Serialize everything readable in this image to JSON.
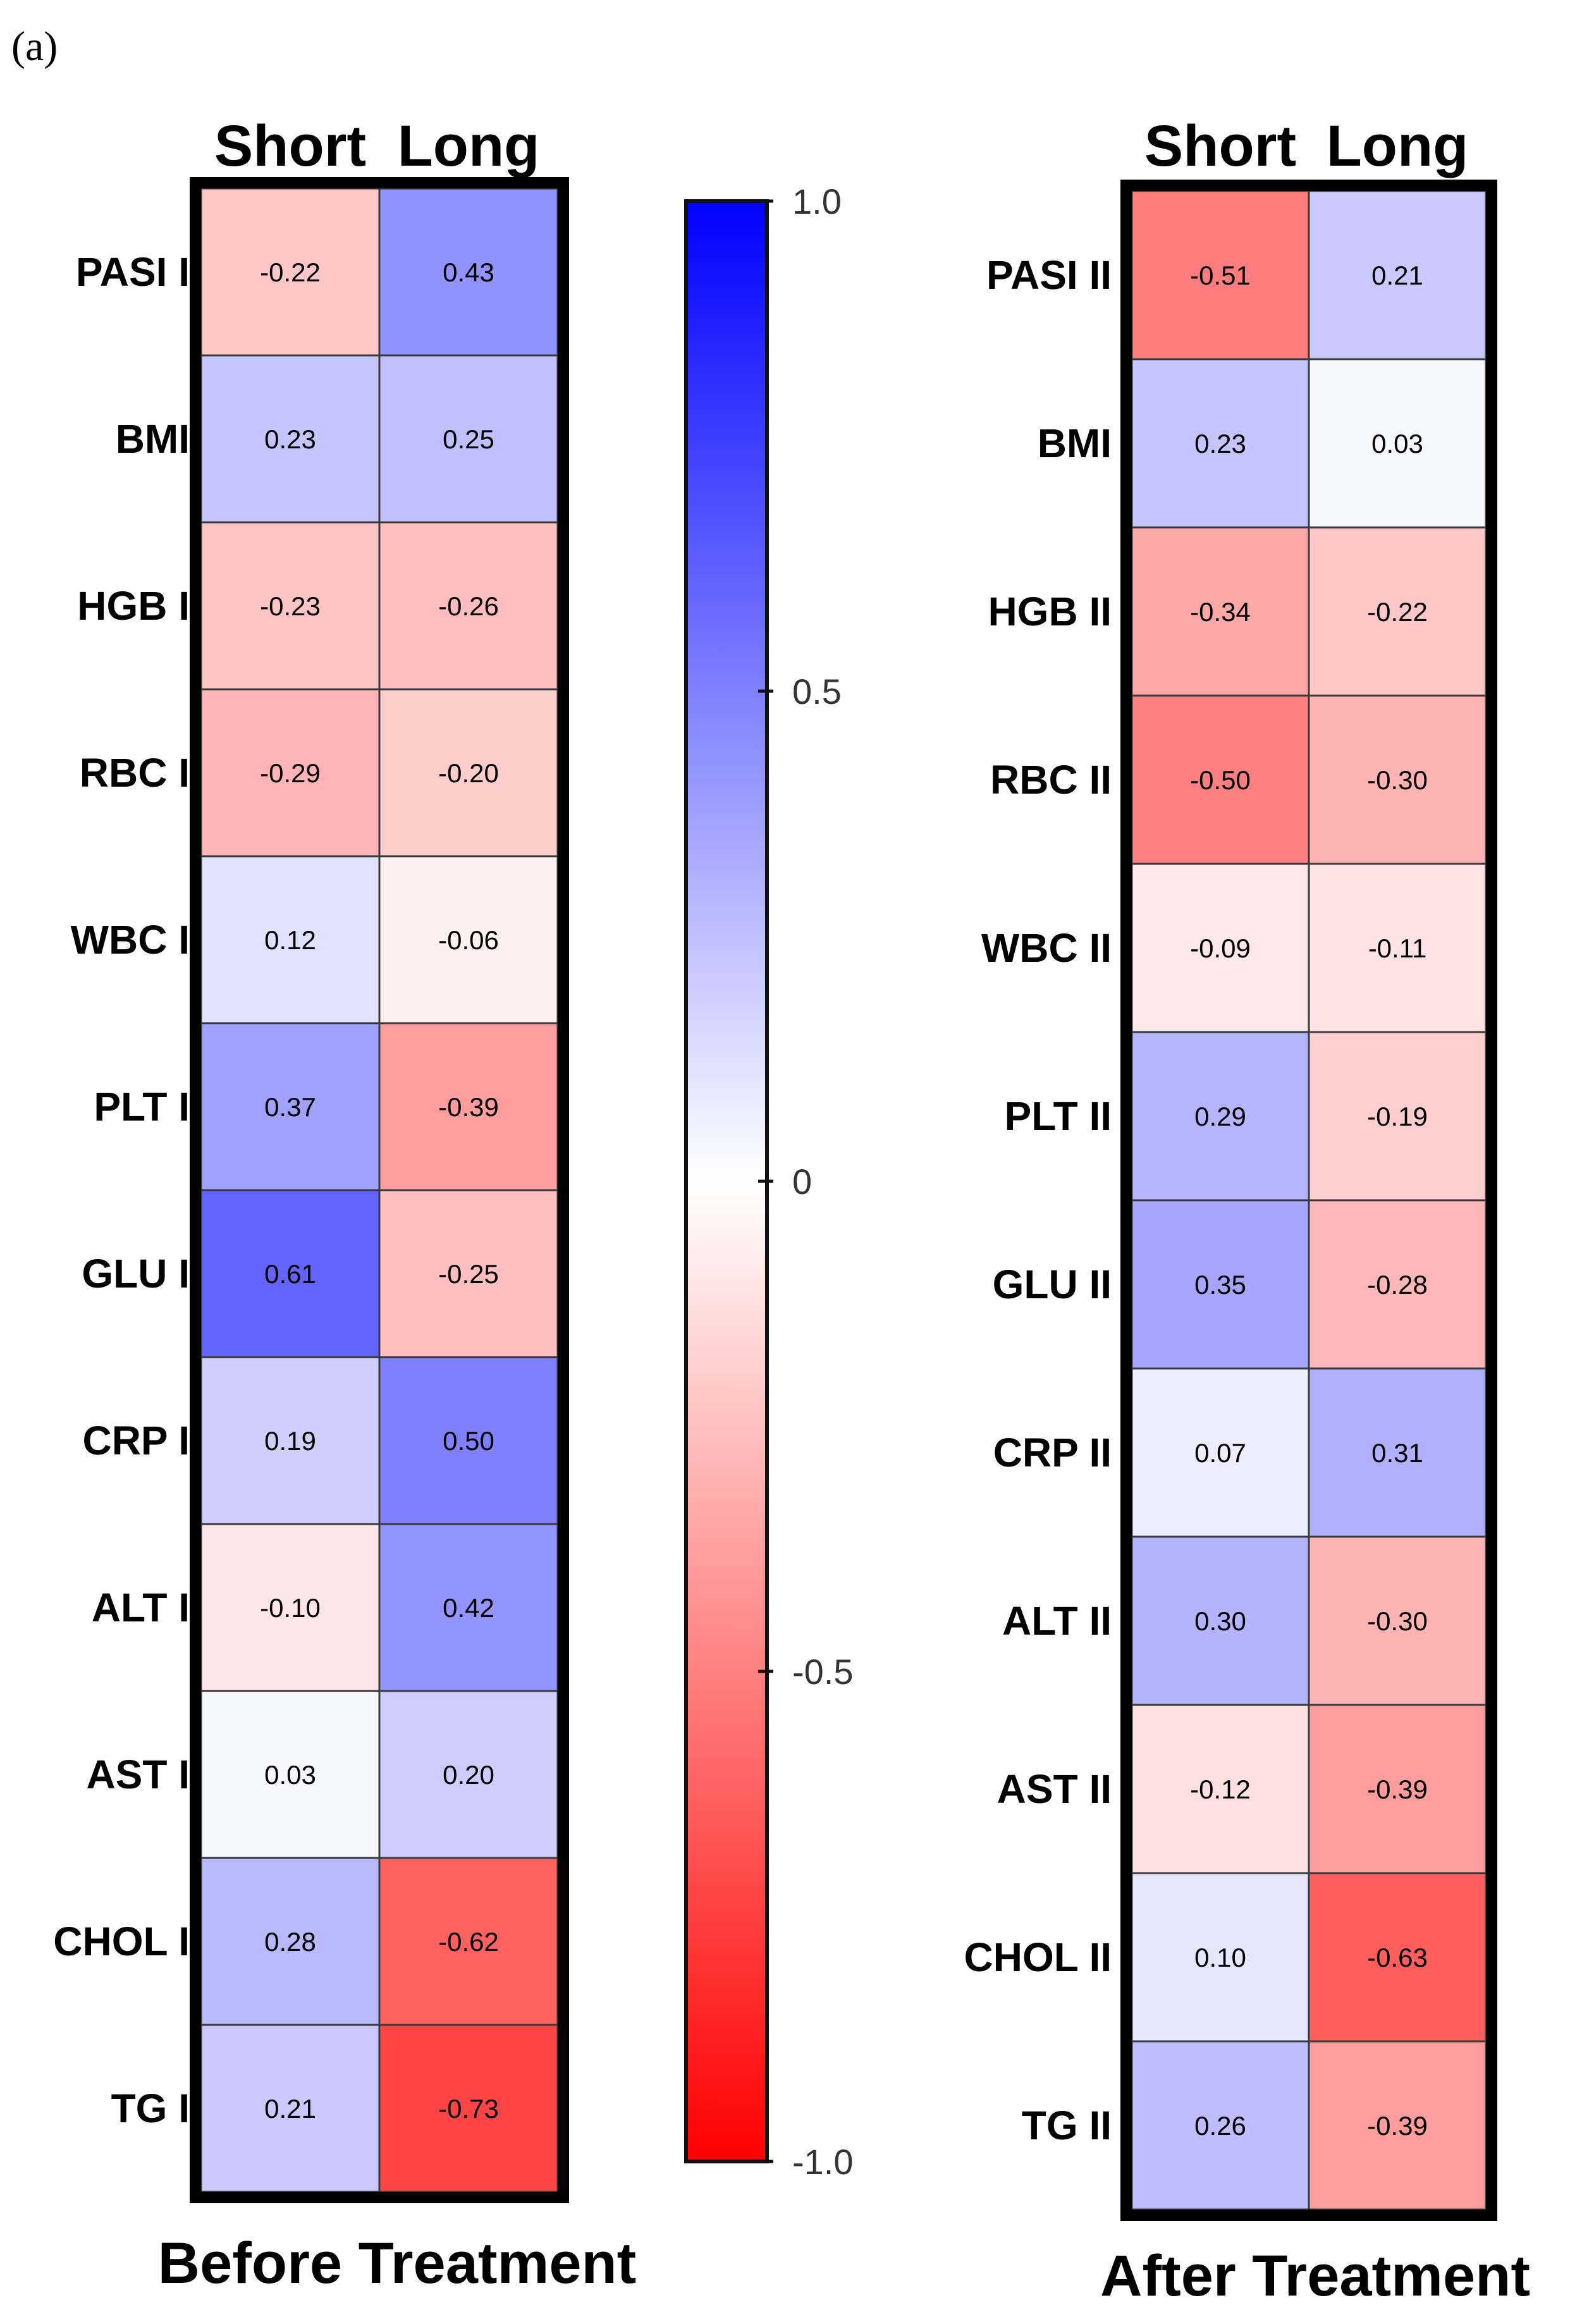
{
  "panel_label": "(a)",
  "colorbar": {
    "ticks": [
      {
        "value": 1.0,
        "label": "1.0"
      },
      {
        "value": 0.5,
        "label": "0.5"
      },
      {
        "value": 0,
        "label": "0"
      },
      {
        "value": -0.5,
        "label": "-0.5"
      },
      {
        "value": -1.0,
        "label": "-1.0"
      }
    ],
    "colors": {
      "max": "#0000ff",
      "mid": "#ffffff",
      "min": "#ff0000"
    }
  },
  "chart_data": [
    {
      "type": "heatmap",
      "title": "Before Treatment",
      "columns": [
        "Short",
        "Long"
      ],
      "rows": [
        "PASI I",
        "BMI",
        "HGB I",
        "RBC I",
        "WBC I",
        "PLT I",
        "GLU I",
        "CRP I",
        "ALT I",
        "AST I",
        "CHOL I",
        "TG I"
      ],
      "values": [
        [
          -0.22,
          0.43
        ],
        [
          0.23,
          0.25
        ],
        [
          -0.23,
          -0.26
        ],
        [
          -0.29,
          -0.2
        ],
        [
          0.12,
          -0.06
        ],
        [
          0.37,
          -0.39
        ],
        [
          0.61,
          -0.25
        ],
        [
          0.19,
          0.5
        ],
        [
          -0.1,
          0.42
        ],
        [
          0.03,
          0.2
        ],
        [
          0.28,
          -0.62
        ],
        [
          0.21,
          -0.73
        ]
      ],
      "value_labels": [
        [
          "-0.22",
          "0.43"
        ],
        [
          "0.23",
          "0.25"
        ],
        [
          "-0.23",
          "-0.26"
        ],
        [
          "-0.29",
          "-0.20"
        ],
        [
          "0.12",
          "-0.06"
        ],
        [
          "0.37",
          "-0.39"
        ],
        [
          "0.61",
          "-0.25"
        ],
        [
          "0.19",
          "0.50"
        ],
        [
          "-0.10",
          "0.42"
        ],
        [
          "0.03",
          "0.20"
        ],
        [
          "0.28",
          "-0.62"
        ],
        [
          "0.21",
          "-0.73"
        ]
      ],
      "vmin": -1.0,
      "vmax": 1.0
    },
    {
      "type": "heatmap",
      "title": "After Treatment",
      "columns": [
        "Short",
        "Long"
      ],
      "rows": [
        "PASI II",
        "BMI",
        "HGB II",
        "RBC II",
        "WBC II",
        "PLT II",
        "GLU II",
        "CRP II",
        "ALT II",
        "AST II",
        "CHOL II",
        "TG II"
      ],
      "values": [
        [
          -0.51,
          0.21
        ],
        [
          0.23,
          0.03
        ],
        [
          -0.34,
          -0.22
        ],
        [
          -0.5,
          -0.3
        ],
        [
          -0.09,
          -0.11
        ],
        [
          0.29,
          -0.19
        ],
        [
          0.35,
          -0.28
        ],
        [
          0.07,
          0.31
        ],
        [
          0.3,
          -0.3
        ],
        [
          -0.12,
          -0.39
        ],
        [
          0.1,
          -0.63
        ],
        [
          0.26,
          -0.39
        ]
      ],
      "value_labels": [
        [
          "-0.51",
          "0.21"
        ],
        [
          "0.23",
          "0.03"
        ],
        [
          "-0.34",
          "-0.22"
        ],
        [
          "-0.50",
          "-0.30"
        ],
        [
          "-0.09",
          "-0.11"
        ],
        [
          "0.29",
          "-0.19"
        ],
        [
          "0.35",
          "-0.28"
        ],
        [
          "0.07",
          "0.31"
        ],
        [
          "0.30",
          "-0.30"
        ],
        [
          "-0.12",
          "-0.39"
        ],
        [
          "0.10",
          "-0.63"
        ],
        [
          "0.26",
          "-0.39"
        ]
      ],
      "vmin": -1.0,
      "vmax": 1.0
    }
  ]
}
